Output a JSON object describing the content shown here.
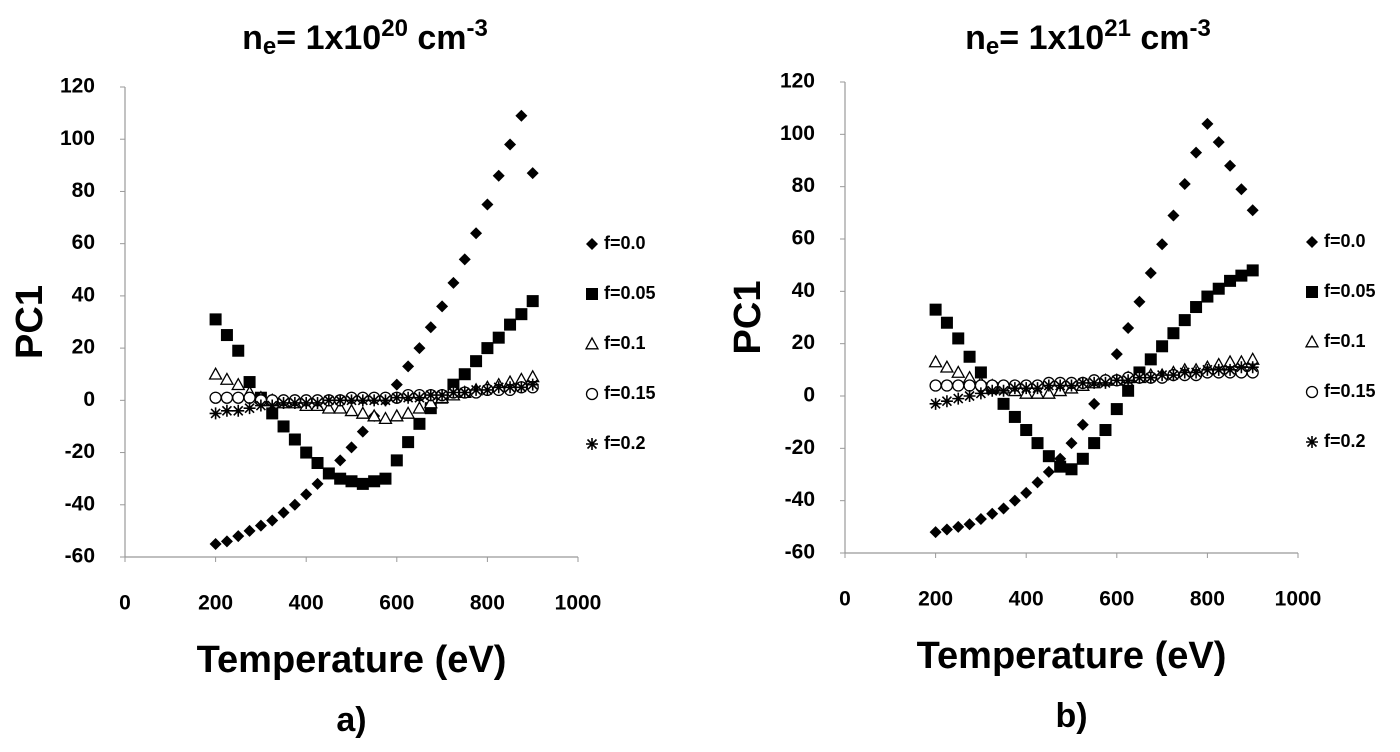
{
  "chart_data": [
    {
      "type": "scatter",
      "title": [
        {
          "text": "n"
        },
        {
          "text": "e",
          "script": "sub"
        },
        {
          "text": "= 1x10"
        },
        {
          "text": "20",
          "script": "super"
        },
        {
          "text": " cm"
        },
        {
          "text": "-3",
          "script": "super"
        }
      ],
      "xlabel": "Temperature (eV)",
      "ylabel": "PC1",
      "panel_label": "a)",
      "xlim": [
        0,
        1000
      ],
      "xticks": [
        0,
        200,
        400,
        600,
        800,
        1000
      ],
      "ylim": [
        -60,
        120
      ],
      "yticks": [
        -60,
        -40,
        -20,
        0,
        20,
        40,
        60,
        80,
        100,
        120
      ],
      "legend": "right",
      "x": [
        200,
        225,
        250,
        275,
        300,
        325,
        350,
        375,
        400,
        425,
        450,
        475,
        500,
        525,
        550,
        575,
        600,
        625,
        650,
        675,
        700,
        725,
        750,
        775,
        800,
        825,
        850,
        875,
        900
      ],
      "series": [
        {
          "name": "f=0.0",
          "marker": "diamond",
          "color": "#000000",
          "values": [
            -55,
            -54,
            -52,
            -50,
            -48,
            -46,
            -43,
            -40,
            -36,
            -32,
            -28,
            -23,
            -18,
            -12,
            -6,
            0,
            6,
            13,
            20,
            28,
            36,
            45,
            54,
            64,
            75,
            86,
            98,
            109,
            87
          ]
        },
        {
          "name": "f=0.05",
          "marker": "square",
          "color": "#000000",
          "values": [
            31,
            25,
            19,
            7,
            1,
            -5,
            -10,
            -15,
            -20,
            -24,
            -28,
            -30,
            -31,
            -32,
            -31,
            -30,
            -23,
            -16,
            -9,
            -3,
            1,
            6,
            10,
            15,
            20,
            24,
            29,
            33,
            38
          ]
        },
        {
          "name": "f=0.1",
          "marker": "triangle",
          "color": "#000000",
          "values": [
            10,
            8,
            6,
            3,
            1,
            0,
            -1,
            -1,
            -2,
            -2,
            -3,
            -3,
            -4,
            -5,
            -6,
            -7,
            -6,
            -5,
            -3,
            -1,
            1,
            2,
            3,
            4,
            5,
            6,
            7,
            8,
            9
          ]
        },
        {
          "name": "f=0.15",
          "marker": "circle",
          "color": "#000000",
          "values": [
            1,
            1,
            1,
            1,
            0,
            0,
            0,
            0,
            0,
            0,
            0,
            0,
            1,
            1,
            1,
            1,
            1,
            2,
            2,
            2,
            2,
            3,
            3,
            3,
            4,
            4,
            4,
            5,
            5
          ]
        },
        {
          "name": "f=0.2",
          "marker": "star",
          "color": "#000000",
          "values": [
            -5,
            -4,
            -4,
            -3,
            -2,
            -2,
            -1,
            -1,
            -1,
            -1,
            0,
            0,
            0,
            0,
            0,
            0,
            1,
            1,
            1,
            2,
            2,
            3,
            3,
            4,
            4,
            5,
            5,
            5,
            6
          ]
        }
      ]
    },
    {
      "type": "scatter",
      "title": [
        {
          "text": "n"
        },
        {
          "text": "e",
          "script": "sub"
        },
        {
          "text": "= 1x10"
        },
        {
          "text": "21",
          "script": "super"
        },
        {
          "text": " cm"
        },
        {
          "text": "-3",
          "script": "super"
        }
      ],
      "xlabel": "Temperature (eV)",
      "ylabel": "PC1",
      "panel_label": "b)",
      "xlim": [
        0,
        1000
      ],
      "xticks": [
        0,
        200,
        400,
        600,
        800,
        1000
      ],
      "ylim": [
        -60,
        120
      ],
      "yticks": [
        -60,
        -40,
        -20,
        0,
        20,
        40,
        60,
        80,
        100,
        120
      ],
      "legend": "right",
      "x": [
        200,
        225,
        250,
        275,
        300,
        325,
        350,
        375,
        400,
        425,
        450,
        475,
        500,
        525,
        550,
        575,
        600,
        625,
        650,
        675,
        700,
        725,
        750,
        775,
        800,
        825,
        850,
        875,
        900
      ],
      "series": [
        {
          "name": "f=0.0",
          "marker": "diamond",
          "color": "#000000",
          "values": [
            -52,
            -51,
            -50,
            -49,
            -47,
            -45,
            -43,
            -40,
            -37,
            -33,
            -29,
            -24,
            -18,
            -11,
            -3,
            6,
            16,
            26,
            36,
            47,
            58,
            69,
            81,
            93,
            104,
            97,
            88,
            79,
            71
          ]
        },
        {
          "name": "f=0.05",
          "marker": "square",
          "color": "#000000",
          "values": [
            33,
            28,
            22,
            15,
            9,
            3,
            -3,
            -8,
            -13,
            -18,
            -23,
            -27,
            -28,
            -24,
            -18,
            -13,
            -5,
            2,
            9,
            14,
            19,
            24,
            29,
            34,
            38,
            41,
            44,
            46,
            48
          ]
        },
        {
          "name": "f=0.1",
          "marker": "triangle",
          "color": "#000000",
          "values": [
            13,
            11,
            9,
            7,
            5,
            4,
            3,
            2,
            1,
            1,
            1,
            2,
            3,
            4,
            5,
            6,
            6,
            7,
            7,
            8,
            8,
            9,
            10,
            10,
            11,
            12,
            13,
            13,
            14
          ]
        },
        {
          "name": "f=0.15",
          "marker": "circle",
          "color": "#000000",
          "values": [
            4,
            4,
            4,
            4,
            4,
            4,
            4,
            4,
            4,
            4,
            5,
            5,
            5,
            5,
            6,
            6,
            6,
            7,
            7,
            7,
            7,
            8,
            8,
            8,
            9,
            9,
            9,
            9,
            9
          ]
        },
        {
          "name": "f=0.2",
          "marker": "star",
          "color": "#000000",
          "values": [
            -3,
            -2,
            -1,
            0,
            1,
            2,
            2,
            3,
            3,
            3,
            4,
            4,
            4,
            5,
            5,
            5,
            6,
            6,
            7,
            7,
            8,
            8,
            9,
            9,
            10,
            10,
            10,
            11,
            11
          ]
        }
      ]
    }
  ]
}
